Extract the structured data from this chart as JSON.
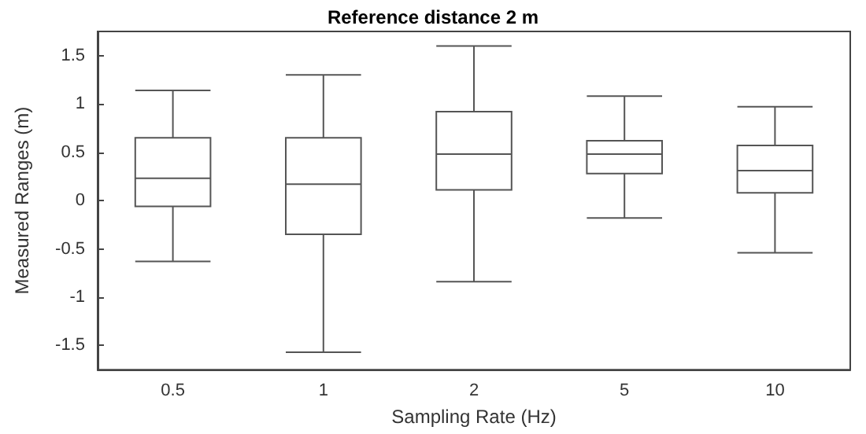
{
  "chart_data": {
    "type": "box",
    "title": "Reference distance 2 m",
    "xlabel": "Sampling Rate (Hz)",
    "ylabel": "Measured Ranges (m)",
    "categories": [
      "0.5",
      "1",
      "2",
      "5",
      "10"
    ],
    "boxes": [
      {
        "low": -0.63,
        "q1": -0.06,
        "median": 0.23,
        "q3": 0.65,
        "high": 1.14
      },
      {
        "low": -1.57,
        "q1": -0.35,
        "median": 0.17,
        "q3": 0.65,
        "high": 1.3
      },
      {
        "low": -0.84,
        "q1": 0.11,
        "median": 0.48,
        "q3": 0.92,
        "high": 1.6
      },
      {
        "low": -0.18,
        "q1": 0.28,
        "median": 0.48,
        "q3": 0.62,
        "high": 1.08
      },
      {
        "low": -0.54,
        "q1": 0.08,
        "median": 0.31,
        "q3": 0.57,
        "high": 0.97
      }
    ],
    "color": "#555555",
    "ylim": [
      -1.75,
      1.75
    ],
    "yticks": [
      -1.5,
      -1,
      -0.5,
      0,
      0.5,
      1,
      1.5
    ],
    "grid": false
  }
}
